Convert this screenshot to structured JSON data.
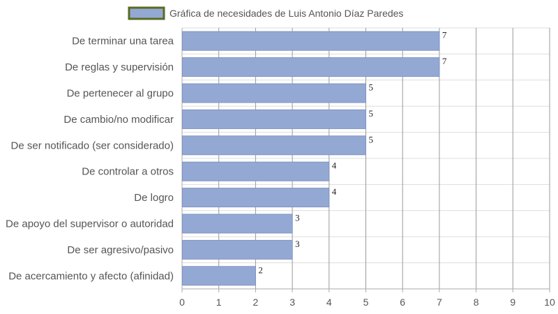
{
  "chart_data": {
    "type": "bar",
    "orientation": "horizontal",
    "categories": [
      "De terminar una tarea",
      "De reglas y supervisión",
      "De pertenecer al grupo",
      "De cambio/no modificar",
      "De ser notificado (ser considerado)",
      "De controlar a otros",
      "De logro",
      "De apoyo del supervisor o autoridad",
      "De ser agresivo/pasivo",
      "De acercamiento y afecto (afinidad)"
    ],
    "series": [
      {
        "name": "Gráfica de necesidades de Luis Antonio Díaz Paredes",
        "values": [
          7,
          7,
          5,
          5,
          5,
          4,
          4,
          3,
          3,
          2
        ]
      }
    ],
    "xlim": [
      0,
      10
    ],
    "x_ticks": [
      "0",
      "1",
      "2",
      "3",
      "4",
      "5",
      "6",
      "7",
      "8",
      "9",
      "10"
    ],
    "grid": true,
    "legend_position": "top",
    "data_labels": true
  },
  "colors": {
    "bar_fill": "#94a8d4",
    "bar_stroke": "#7f93c3",
    "legend_border": "#5a6b1f",
    "grid": "#dddddd",
    "vertical_grid": "#999999",
    "axis": "#aaaaaa"
  }
}
